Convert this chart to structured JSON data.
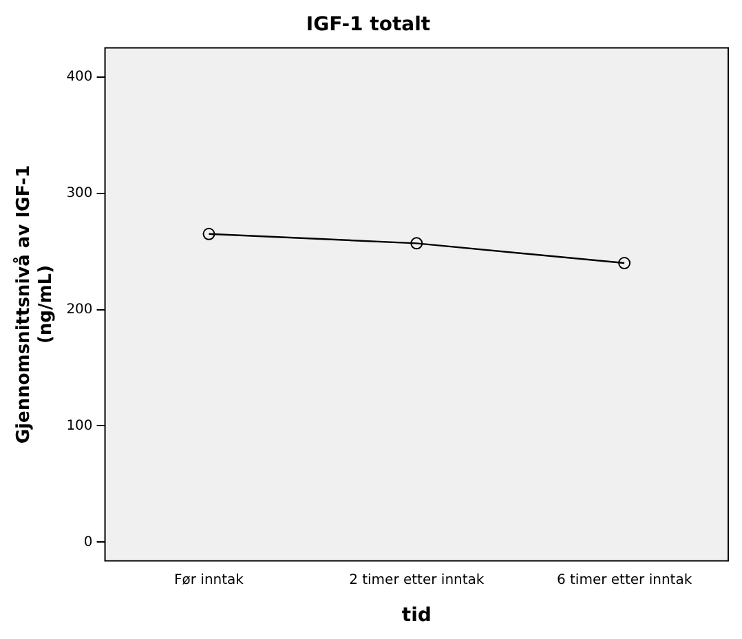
{
  "chart_data": {
    "type": "line",
    "title": "IGF-1 totalt",
    "xlabel": "tid",
    "ylabel": "Gjennomsnittsnivå av IGF-1 (ng/mL)",
    "categories": [
      "Før inntak",
      "2 timer etter inntak",
      "6 timer etter inntak"
    ],
    "series": [
      {
        "color": "#000000",
        "values": [
          265,
          257,
          240
        ]
      }
    ],
    "ylim": [
      -16,
      425
    ],
    "yticks": [
      0,
      100,
      200,
      300,
      400
    ],
    "grid": false,
    "legend": false,
    "marker": "circle",
    "line_style": "solid"
  }
}
